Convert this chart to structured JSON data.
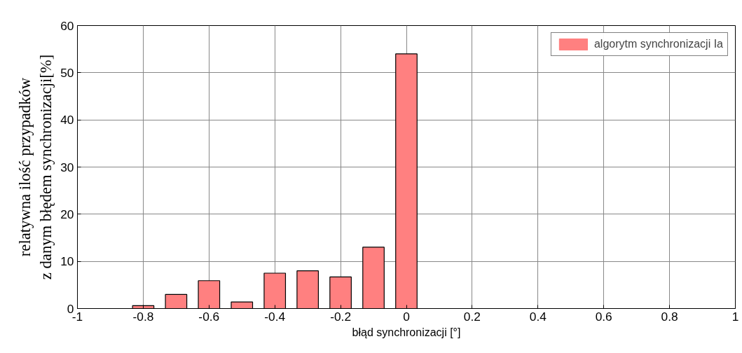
{
  "chart_data": {
    "type": "bar",
    "xlabel": "błąd synchronizacji [°]",
    "ylabel": "relatywna ilość przypadków\nz danym błędem synchronizacji[%]",
    "x": [
      -0.9,
      -0.8,
      -0.7,
      -0.6,
      -0.5,
      -0.4,
      -0.3,
      -0.2,
      -0.1,
      0,
      0.1,
      0.2,
      0.3,
      0.4,
      0.5,
      0.6,
      0.7,
      0.8,
      0.9
    ],
    "series": [
      {
        "name": "algorytm synchronizacji Ia",
        "color": "#ff8080",
        "values": [
          0,
          0.6,
          3.0,
          5.9,
          1.4,
          7.5,
          8.0,
          6.7,
          13.0,
          54,
          0,
          0,
          0,
          0,
          0,
          0,
          0,
          0,
          0
        ]
      }
    ],
    "xlim": [
      -1,
      1
    ],
    "xticks": [
      -1,
      -0.8,
      -0.6,
      -0.4,
      -0.2,
      0,
      0.2,
      0.4,
      0.6,
      0.8,
      1
    ],
    "ylim": [
      0,
      60
    ],
    "yticks": [
      0,
      10,
      20,
      30,
      40,
      50,
      60
    ],
    "grid": true,
    "legend": "top right"
  }
}
